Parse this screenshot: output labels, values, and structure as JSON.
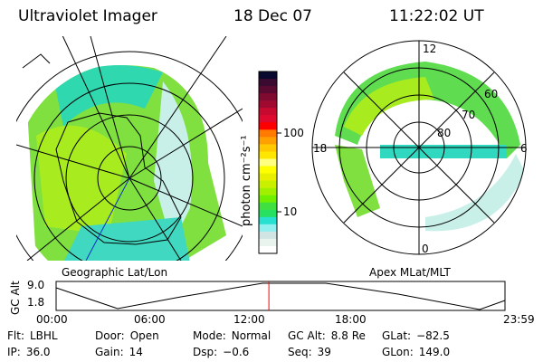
{
  "header": {
    "title": "Ultraviolet Imager",
    "date": "18 Dec 07",
    "time": "11:22:02 UT"
  },
  "left_map": {
    "label": "Geographic Lat/Lon"
  },
  "right_map": {
    "label": "Apex MLat/MLT",
    "mlt_labels": [
      "12",
      "18",
      "6",
      "0"
    ],
    "lat_labels": [
      "60",
      "70",
      "80"
    ]
  },
  "colorbar": {
    "unit": "photon cm⁻²s⁻¹",
    "ticks": [
      "100",
      "10"
    ],
    "colors": [
      "#0a0a30",
      "#3a0a30",
      "#5a0a30",
      "#800a30",
      "#a00a30",
      "#c80a30",
      "#e00a30",
      "#ff0000",
      "#ff7a00",
      "#ffa000",
      "#ffc800",
      "#ffe600",
      "#ffff80",
      "#ffff00",
      "#e8f000",
      "#c8f000",
      "#a0f000",
      "#70f000",
      "#40e040",
      "#28e060",
      "#28e0d0",
      "#90f0f0",
      "#d0e4e4",
      "#eaf4ee",
      "#ffffff"
    ]
  },
  "altitude_plot": {
    "ylabel": "GC Alt",
    "yticks": [
      "9.0",
      "1.8"
    ],
    "xticks": [
      "00:00",
      "06:00",
      "12:00",
      "18:00",
      "23:59"
    ],
    "current_fraction": 0.474,
    "marker_color": "#ff0000"
  },
  "status": [
    {
      "label": "Flt:",
      "value": "LBHL"
    },
    {
      "label": "Door:",
      "value": "Open"
    },
    {
      "label": "Mode:",
      "value": "Normal"
    },
    {
      "label": "GC Alt:",
      "value": "8.8 Re"
    },
    {
      "label": "GLat:",
      "value": "−82.5"
    },
    {
      "label": "IP:",
      "value": "36.0"
    },
    {
      "label": "Gain:",
      "value": "14"
    },
    {
      "label": "Dsp:",
      "value": "−0.6"
    },
    {
      "label": "Seq:",
      "value": "39"
    },
    {
      "label": "GLon:",
      "value": "149.0"
    }
  ]
}
